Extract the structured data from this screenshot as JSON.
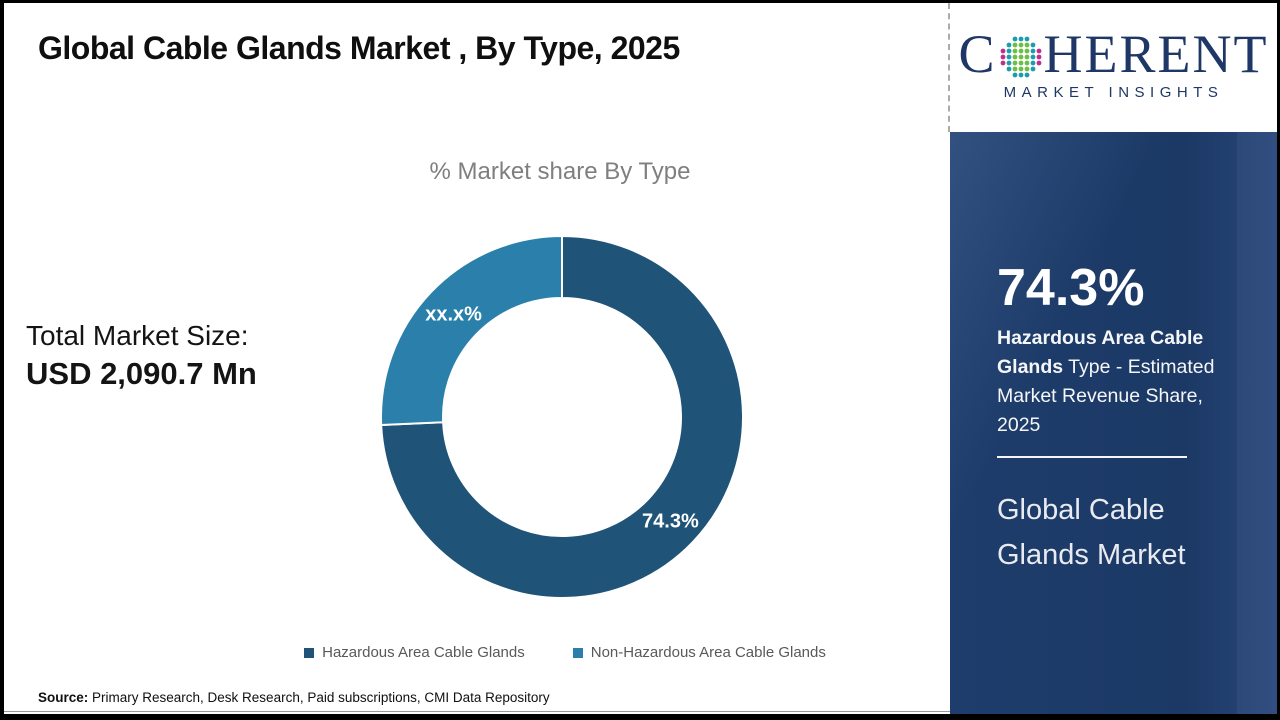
{
  "header": {
    "title": "Global Cable Glands Market , By Type, 2025"
  },
  "logo": {
    "name": "Coherent Market Insights",
    "word_start": "C",
    "word_end": "HERENT",
    "subtitle": "MARKET INSIGHTS",
    "brand_navy": "#1e3766",
    "globe_dot_colors": {
      "green": "#6cbe45",
      "teal": "#1b9dad",
      "magenta": "#c12c8e"
    }
  },
  "chart_data": {
    "type": "pie",
    "donut": true,
    "title": "% Market share By Type",
    "start_angle_deg": 0,
    "direction": "clockwise",
    "legend_position": "bottom",
    "slices": [
      {
        "label": "Hazardous Area Cable Glands",
        "value": 74.3,
        "display_label": "74.3%",
        "color": "#1f5378"
      },
      {
        "label": "Non-Hazardous Area Cable Glands",
        "value": 25.7,
        "display_label": "xx.x%",
        "color": "#2a80aa"
      }
    ]
  },
  "left_stat": {
    "label": "Total Market Size:",
    "value": "USD 2,090.7 Mn"
  },
  "panel": {
    "bg_color": "#1d3a68",
    "stat_value": "74.3%",
    "desc_bold": "Hazardous Area Cable Glands",
    "desc_rest": " Type - Estimated Market Revenue Share, 2025",
    "market_name": "Global Cable Glands Market"
  },
  "source": {
    "label": "Source:",
    "text": " Primary Research, Desk Research, Paid subscriptions, CMI Data Repository"
  }
}
